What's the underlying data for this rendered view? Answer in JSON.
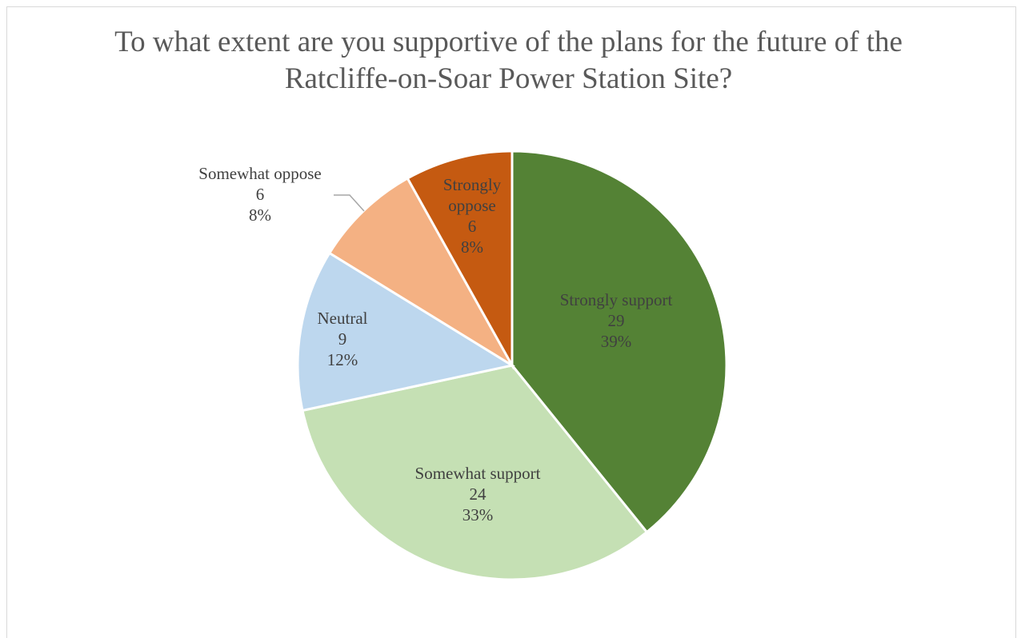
{
  "chart_data": {
    "type": "pie",
    "title_lines": [
      "To what extent are you supportive of the plans for the future of the",
      "Ratcliffe-on-Soar Power Station Site?"
    ],
    "slices": [
      {
        "label": "Strongly support",
        "value": 29,
        "percent": "39%",
        "color": "#548235"
      },
      {
        "label": "Somewhat support",
        "value": 24,
        "percent": "33%",
        "color": "#c5e0b4"
      },
      {
        "label": "Neutral",
        "value": 9,
        "percent": "12%",
        "color": "#bdd7ee"
      },
      {
        "label": "Somewhat oppose",
        "value": 6,
        "percent": "8%",
        "color": "#f4b183"
      },
      {
        "label": "Strongly oppose",
        "value": 6,
        "percent": "8%",
        "color": "#c55a11"
      }
    ],
    "start_angle_deg": 0,
    "direction": "clockwise",
    "legend": "none"
  }
}
